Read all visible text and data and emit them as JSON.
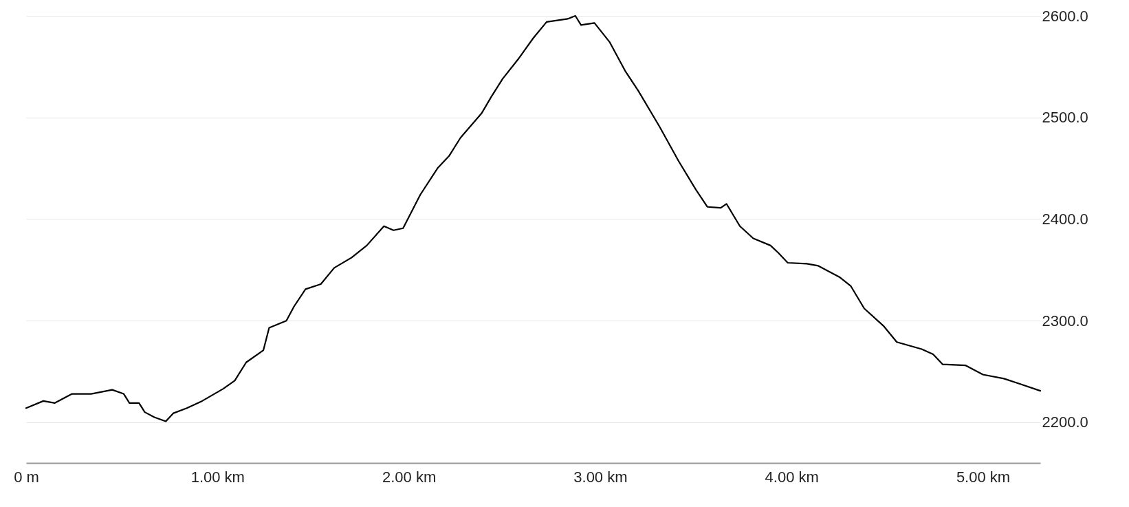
{
  "chart_data": {
    "type": "line",
    "x": [
      0,
      0.09,
      0.15,
      0.24,
      0.34,
      0.45,
      0.51,
      0.54,
      0.59,
      0.62,
      0.67,
      0.73,
      0.77,
      0.84,
      0.92,
      1.03,
      1.09,
      1.15,
      1.24,
      1.27,
      1.36,
      1.4,
      1.46,
      1.54,
      1.61,
      1.7,
      1.78,
      1.87,
      1.92,
      1.97,
      2.06,
      2.15,
      2.21,
      2.27,
      2.38,
      2.43,
      2.49,
      2.57,
      2.65,
      2.72,
      2.83,
      2.87,
      2.9,
      2.97,
      3.05,
      3.13,
      3.2,
      3.31,
      3.41,
      3.5,
      3.56,
      3.63,
      3.66,
      3.73,
      3.8,
      3.89,
      3.93,
      3.98,
      4.08,
      4.14,
      4.25,
      4.31,
      4.38,
      4.48,
      4.55,
      4.68,
      4.74,
      4.79,
      4.91,
      5.0,
      5.11,
      5.19,
      5.3
    ],
    "series": [
      {
        "color": "#000000",
        "values": [
          2214,
          2221,
          2219,
          2228,
          2228,
          2232,
          2228,
          2219,
          2219,
          2210,
          2205,
          2201,
          2209,
          2214,
          2221,
          2233,
          2241,
          2259,
          2271,
          2293,
          2300,
          2314,
          2331,
          2336,
          2352,
          2362,
          2374,
          2393,
          2389,
          2391,
          2424,
          2450,
          2462,
          2480,
          2504,
          2520,
          2538,
          2557,
          2578,
          2594,
          2597,
          2600,
          2591,
          2593,
          2574,
          2546,
          2526,
          2491,
          2457,
          2429,
          2412,
          2411,
          2415,
          2393,
          2381,
          2374,
          2367,
          2357,
          2356,
          2354,
          2343,
          2334,
          2312,
          2295,
          2279,
          2272,
          2267,
          2257,
          2256,
          2247,
          2243,
          2238,
          2231
        ]
      }
    ],
    "xlim": [
      0,
      5.3
    ],
    "xticks": [
      {
        "value": 0,
        "label": "0 m"
      },
      {
        "value": 1,
        "label": "1.00 km"
      },
      {
        "value": 2,
        "label": "2.00 km"
      },
      {
        "value": 3,
        "label": "3.00 km"
      },
      {
        "value": 4,
        "label": "4.00 km"
      },
      {
        "value": 5,
        "label": "5.00 km"
      }
    ],
    "ylim": [
      2160,
      2600
    ],
    "yticks": [
      {
        "value": 2200,
        "label": "2200.0"
      },
      {
        "value": 2300,
        "label": "2300.0"
      },
      {
        "value": 2400,
        "label": "2400.0"
      },
      {
        "value": 2500,
        "label": "2500.0"
      },
      {
        "value": 2600,
        "label": "2600.0"
      }
    ],
    "grid": "y",
    "marker": "none",
    "line_style": "solid"
  }
}
